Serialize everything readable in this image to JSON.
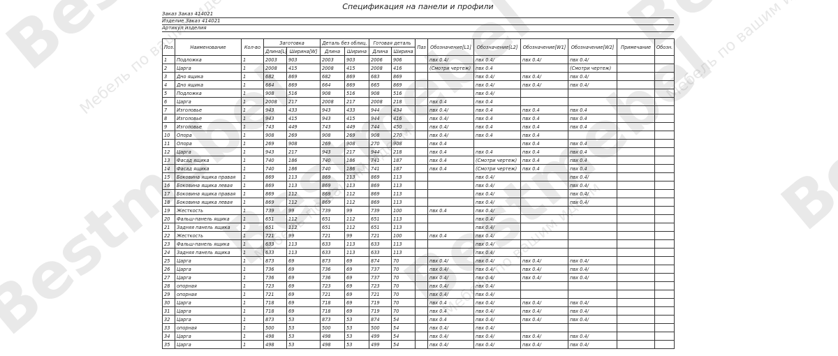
{
  "watermark": {
    "brand": "Bestmebel",
    "slogan": "Мебель по вашим идеям"
  },
  "header": {
    "title": "Спецификация на панели и профили",
    "order": "Заказ Заказ 414021",
    "product": "Изделие Заказ 414021",
    "article": "Артикул изделия"
  },
  "table": {
    "groups": {
      "blank": "Заготовка",
      "detail": "Деталь без облиц.",
      "finished": "Готовая деталь"
    },
    "columns": [
      "Поз.",
      "Наименование",
      "Кол-во",
      "Длина[L]",
      "Ширина[W]",
      "Длина",
      "Ширина",
      "Длина",
      "Ширина",
      "Паз",
      "Обозначение[L1]",
      "Обозначение[L2]",
      "Обозначение[W1]",
      "Обозначение[W2]",
      "Примечание",
      "Обозн."
    ],
    "rows": [
      [
        "1",
        "Подложка",
        "1",
        "2003",
        "903",
        "2003",
        "903",
        "2006",
        "906",
        null,
        "пвх 0.4/",
        "пвх 0.4/",
        "пвх 0.4/",
        "пвх 0.4/",
        null,
        null
      ],
      [
        "2",
        "Царга",
        "1",
        "2008",
        "415",
        "2008",
        "415",
        "2008",
        "416",
        null,
        "(Смотри чертеж)",
        "пвх 0.4",
        null,
        "(Смотри чертеж)",
        null,
        null
      ],
      [
        "3",
        "Дно ящика",
        "1",
        "682",
        "869",
        "682",
        "869",
        "683",
        "869",
        null,
        null,
        "пвх 0.4/",
        "пвх 0.4/",
        "пвх 0.4/",
        null,
        null
      ],
      [
        "4",
        "Дно ящика",
        "1",
        "664",
        "869",
        "664",
        "869",
        "665",
        "869",
        null,
        null,
        "пвх 0.4/",
        "пвх 0.4/",
        "пвх 0.4/",
        null,
        null
      ],
      [
        "5",
        "Подложка",
        "1",
        "908",
        "516",
        "908",
        "516",
        "908",
        "516",
        null,
        null,
        "пвх 0.4/",
        null,
        null,
        null,
        null
      ],
      [
        "6",
        "Царга",
        "1",
        "2008",
        "217",
        "2008",
        "217",
        "2008",
        "218",
        null,
        "пвх 0.4",
        "пвх 0.4",
        null,
        null,
        null,
        null
      ],
      [
        "7",
        "Изголовье",
        "1",
        "943",
        "433",
        "943",
        "433",
        "944",
        "434",
        null,
        "пвх 0.4/",
        "пвх 0.4",
        "пвх 0.4",
        "пвх 0.4",
        null,
        null
      ],
      [
        "8",
        "Изголовье",
        "1",
        "943",
        "415",
        "943",
        "415",
        "944",
        "416",
        null,
        "пвх 0.4/",
        "пвх 0.4",
        "пвх 0.4",
        "пвх 0.4",
        null,
        null
      ],
      [
        "9",
        "Изголовье",
        "1",
        "743",
        "449",
        "743",
        "449",
        "744",
        "450",
        null,
        "пвх 0.4/",
        "пвх 0.4",
        "пвх 0.4",
        "пвх 0.4",
        null,
        null
      ],
      [
        "10",
        "Опора",
        "1",
        "908",
        "269",
        "908",
        "269",
        "908",
        "270",
        null,
        "пвх 0.4/",
        "пвх 0.4",
        "пвх 0.4",
        null,
        null,
        null
      ],
      [
        "11",
        "Опора",
        "1",
        "269",
        "908",
        "269",
        "908",
        "270",
        "908",
        null,
        "пвх 0.4",
        null,
        "пвх 0.4",
        "пвх 0.4",
        null,
        null
      ],
      [
        "12",
        "Царга",
        "1",
        "943",
        "217",
        "943",
        "217",
        "944",
        "218",
        null,
        "пвх 0.4",
        "пвх 0.4",
        "пвх 0.4",
        "пвх 0.4",
        null,
        null
      ],
      [
        "13",
        "Фасад ящика",
        "1",
        "740",
        "186",
        "740",
        "186",
        "741",
        "187",
        null,
        "пвх 0.4",
        "(Смотри чертеж)",
        "пвх 0.4",
        "пвх 0.4",
        null,
        null
      ],
      [
        "14",
        "Фасад ящика",
        "1",
        "740",
        "186",
        "740",
        "186",
        "741",
        "187",
        null,
        "пвх 0.4",
        "(Смотри чертеж)",
        "пвх 0.4",
        "пвх 0.4",
        null,
        null
      ],
      [
        "15",
        "Боковина ящика правая",
        "1",
        "869",
        "113",
        "869",
        "113",
        "869",
        "113",
        null,
        null,
        "пвх 0.4/",
        null,
        "пвх 0.4/",
        null,
        null
      ],
      [
        "16",
        "Боковина ящика левая",
        "1",
        "869",
        "113",
        "869",
        "113",
        "869",
        "113",
        null,
        null,
        "пвх 0.4/",
        null,
        "пвх 0.4/",
        null,
        null
      ],
      [
        "17",
        "Боковина ящика правая",
        "1",
        "869",
        "112",
        "869",
        "112",
        "869",
        "113",
        null,
        null,
        "пвх 0.4/",
        null,
        "пвх 0.4/",
        null,
        null
      ],
      [
        "18",
        "Боковина ящика левая",
        "1",
        "869",
        "112",
        "869",
        "112",
        "869",
        "113",
        null,
        null,
        "пвх 0.4/",
        null,
        "пвх 0.4/",
        null,
        null
      ],
      [
        "19",
        "Жесткость",
        "1",
        "739",
        "99",
        "739",
        "99",
        "739",
        "100",
        null,
        "пвх 0.4",
        "пвх 0.4/",
        null,
        null,
        null,
        null
      ],
      [
        "20",
        "Фальш-панель ящика",
        "1",
        "651",
        "112",
        "651",
        "112",
        "651",
        "113",
        null,
        null,
        "пвх 0.4/",
        null,
        null,
        null,
        null
      ],
      [
        "21",
        "Задняя панель ящика",
        "1",
        "651",
        "112",
        "651",
        "112",
        "651",
        "113",
        null,
        null,
        "пвх 0.4/",
        null,
        null,
        null,
        null
      ],
      [
        "22",
        "Жесткость",
        "1",
        "721",
        "99",
        "721",
        "99",
        "721",
        "100",
        null,
        "пвх 0.4",
        "пвх 0.4/",
        null,
        null,
        null,
        null
      ],
      [
        "23",
        "Фальш-панель ящика",
        "1",
        "633",
        "113",
        "633",
        "113",
        "633",
        "113",
        null,
        null,
        "пвх 0.4/",
        null,
        null,
        null,
        null
      ],
      [
        "24",
        "Задняя панель ящика",
        "1",
        "633",
        "113",
        "633",
        "113",
        "633",
        "113",
        null,
        null,
        "пвх 0.4/",
        null,
        null,
        null,
        null
      ],
      [
        "25",
        "Царга",
        "1",
        "873",
        "69",
        "873",
        "69",
        "874",
        "70",
        null,
        "пвх 0.4/",
        "пвх 0.4/",
        "пвх 0.4/",
        "пвх 0.4/",
        null,
        null
      ],
      [
        "26",
        "Царга",
        "1",
        "736",
        "69",
        "736",
        "69",
        "737",
        "70",
        null,
        "пвх 0.4/",
        "пвх 0.4/",
        "пвх 0.4/",
        "пвх 0.4/",
        null,
        null
      ],
      [
        "27",
        "Царга",
        "1",
        "736",
        "69",
        "736",
        "69",
        "737",
        "70",
        null,
        "пвх 0.4/",
        "пвх 0.4/",
        "пвх 0.4/",
        "пвх 0.4/",
        null,
        null
      ],
      [
        "28",
        "опорная",
        "1",
        "723",
        "69",
        "723",
        "69",
        "723",
        "70",
        null,
        "пвх 0.4/",
        "пвх 0.4/",
        null,
        null,
        null,
        null
      ],
      [
        "29",
        "опорная",
        "1",
        "721",
        "69",
        "721",
        "69",
        "721",
        "70",
        null,
        "пвх 0.4/",
        "пвх 0.4/",
        null,
        null,
        null,
        null
      ],
      [
        "30",
        "Царга",
        "1",
        "718",
        "69",
        "718",
        "69",
        "719",
        "70",
        null,
        "пвх 0.4",
        "пвх 0.4/",
        "пвх 0.4/",
        "пвх 0.4/",
        null,
        null
      ],
      [
        "31",
        "Царга",
        "1",
        "718",
        "69",
        "718",
        "69",
        "719",
        "70",
        null,
        "пвх 0.4",
        "пвх 0.4/",
        "пвх 0.4/",
        "пвх 0.4/",
        null,
        null
      ],
      [
        "32",
        "Царга",
        "1",
        "873",
        "53",
        "873",
        "53",
        "874",
        "54",
        null,
        "пвх 0.4",
        "пвх 0.4/",
        "пвх 0.4/",
        "пвх 0.4/",
        null,
        null
      ],
      [
        "33",
        "опорная",
        "1",
        "500",
        "53",
        "500",
        "53",
        "500",
        "54",
        null,
        "пвх 0.4/",
        "пвх 0.4/",
        null,
        null,
        null,
        null
      ],
      [
        "34",
        "Царга",
        "1",
        "498",
        "53",
        "498",
        "53",
        "499",
        "54",
        null,
        "пвх 0.4/",
        "пвх 0.4/",
        "пвх 0.4/",
        "пвх 0.4/",
        null,
        null
      ],
      [
        "35",
        "Царга",
        "1",
        "498",
        "53",
        "498",
        "53",
        "499",
        "54",
        null,
        "пвх 0.4/",
        "пвх 0.4/",
        "пвх 0.4/",
        "пвх 0.4/",
        null,
        null
      ]
    ]
  }
}
